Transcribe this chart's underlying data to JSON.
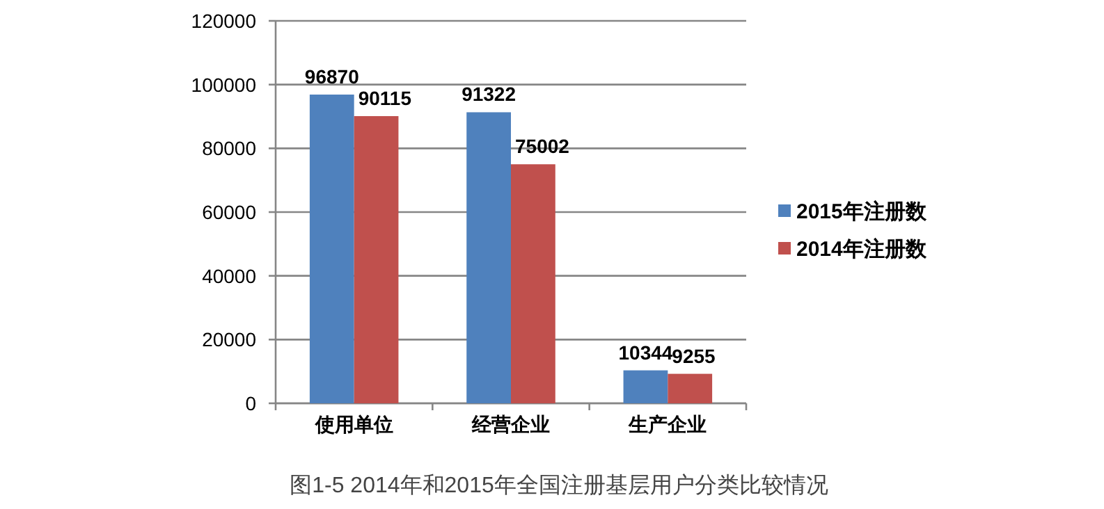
{
  "chart_data": {
    "type": "bar",
    "categories": [
      "使用单位",
      "经营企业",
      "生产企业"
    ],
    "series": [
      {
        "name": "2015年注册数",
        "color": "#4f81bd",
        "values": [
          96870,
          91322,
          10344
        ]
      },
      {
        "name": "2014年注册数",
        "color": "#c0504d",
        "values": [
          90115,
          75002,
          9255
        ]
      }
    ],
    "ylim": [
      0,
      120000
    ],
    "yticks": [
      0,
      20000,
      40000,
      60000,
      80000,
      100000,
      120000
    ],
    "grid": "y",
    "legend": "right",
    "data_labels": true,
    "annotations": [
      "图1-5 2014年和2015年全国注册基层用户分类比较情况"
    ]
  }
}
